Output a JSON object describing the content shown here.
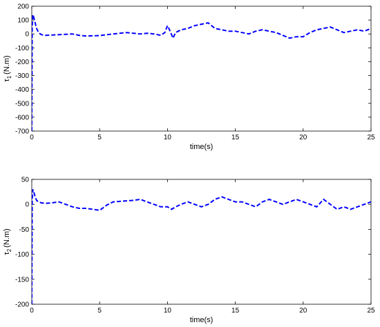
{
  "chart_data": [
    {
      "type": "line",
      "xlabel": "time(s)",
      "ylabel": {
        "symbol": "τ",
        "subscript": "1",
        "unit": "(N.m)"
      },
      "xlim": [
        0,
        25
      ],
      "ylim": [
        -700,
        200
      ],
      "xticks": [
        "0",
        "5",
        "10",
        "15",
        "20",
        "25"
      ],
      "yticks": [
        "200",
        "100",
        "0",
        "-100",
        "-200",
        "-300",
        "-400",
        "-500",
        "-600",
        "-700"
      ],
      "grid": false,
      "line_style": "dashed",
      "color": "#0000ff",
      "series": [
        {
          "x": [
            0,
            0.03,
            0.08,
            0.15,
            0.25,
            0.35,
            0.5,
            0.7,
            1.0,
            1.5,
            2.0,
            2.5,
            3.0,
            3.5,
            4.0,
            5.0,
            6.0,
            7.0,
            7.5,
            8.0,
            8.5,
            9.0,
            9.5,
            9.8,
            10.0,
            10.2,
            10.4,
            10.6,
            11.0,
            11.5,
            12.0,
            12.5,
            13.0,
            13.5,
            14.0,
            14.5,
            15.0,
            15.5,
            16.0,
            16.5,
            17.0,
            17.5,
            18.0,
            18.5,
            19.0,
            19.5,
            20.0,
            20.5,
            21.0,
            21.5,
            22.0,
            22.5,
            23.0,
            23.5,
            24.0,
            24.5,
            25.0
          ],
          "y": [
            -700,
            50,
            140,
            120,
            80,
            40,
            10,
            -5,
            -10,
            -8,
            -5,
            -3,
            0,
            -10,
            -15,
            -12,
            0,
            10,
            5,
            0,
            5,
            0,
            -10,
            10,
            60,
            20,
            -30,
            10,
            30,
            40,
            60,
            70,
            80,
            40,
            30,
            20,
            20,
            10,
            0,
            20,
            30,
            20,
            10,
            -10,
            -30,
            -20,
            -20,
            10,
            30,
            40,
            50,
            30,
            10,
            20,
            30,
            20,
            40
          ]
        }
      ]
    },
    {
      "type": "line",
      "xlabel": "time(s)",
      "ylabel": {
        "symbol": "τ",
        "subscript": "2",
        "unit": "(N.m)"
      },
      "xlim": [
        0,
        25
      ],
      "ylim": [
        -200,
        50
      ],
      "xticks": [
        "0",
        "5",
        "10",
        "15",
        "20",
        "25"
      ],
      "yticks": [
        "50",
        "0",
        "-50",
        "-100",
        "-150",
        "-200"
      ],
      "grid": false,
      "line_style": "dashed",
      "color": "#0000ff",
      "series": [
        {
          "x": [
            0,
            0.03,
            0.08,
            0.15,
            0.25,
            0.35,
            0.5,
            0.7,
            1.0,
            1.5,
            2.0,
            2.5,
            3.0,
            3.5,
            4.0,
            4.5,
            5.0,
            5.5,
            6.0,
            6.5,
            7.0,
            7.5,
            8.0,
            8.5,
            9.0,
            9.5,
            10.0,
            10.3,
            10.6,
            11.0,
            11.5,
            12.0,
            12.5,
            13.0,
            13.5,
            14.0,
            14.5,
            15.0,
            15.5,
            16.0,
            16.5,
            17.0,
            17.5,
            18.0,
            18.5,
            19.0,
            19.5,
            20.0,
            20.5,
            21.0,
            21.5,
            22.0,
            22.5,
            23.0,
            23.5,
            24.0,
            24.5,
            25.0
          ],
          "y": [
            -200,
            10,
            30,
            25,
            15,
            8,
            5,
            3,
            2,
            3,
            5,
            0,
            -5,
            -8,
            -8,
            -10,
            -12,
            -2,
            5,
            6,
            7,
            8,
            10,
            5,
            0,
            -5,
            -5,
            -10,
            -5,
            0,
            5,
            0,
            -5,
            0,
            10,
            15,
            10,
            5,
            5,
            0,
            -5,
            5,
            10,
            5,
            0,
            5,
            10,
            5,
            0,
            -5,
            10,
            0,
            -10,
            -5,
            -10,
            -5,
            0,
            5
          ]
        }
      ]
    }
  ]
}
